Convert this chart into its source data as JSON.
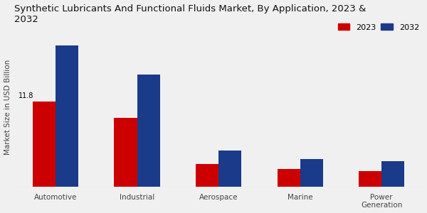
{
  "title": "Synthetic Lubricants And Functional Fluids Market, By Application, 2023 &\n2032",
  "categories": [
    "Automotive",
    "Industrial",
    "Aerospace",
    "Marine",
    "Power\nGeneration"
  ],
  "values_2023": [
    11.8,
    9.5,
    3.2,
    2.5,
    2.2
  ],
  "values_2032": [
    19.5,
    15.5,
    5.0,
    3.8,
    3.5
  ],
  "color_2023": "#cc0000",
  "color_2032": "#1a3a8a",
  "ylabel": "Market Size in USD Billion",
  "annotation_label": "11.8",
  "background_color": "#f0f0f0",
  "legend_2023": "2023",
  "legend_2032": "2032",
  "bar_width": 0.28,
  "ylim": [
    0,
    22
  ],
  "title_fontsize": 9.5,
  "axis_fontsize": 7.5,
  "legend_fontsize": 8
}
